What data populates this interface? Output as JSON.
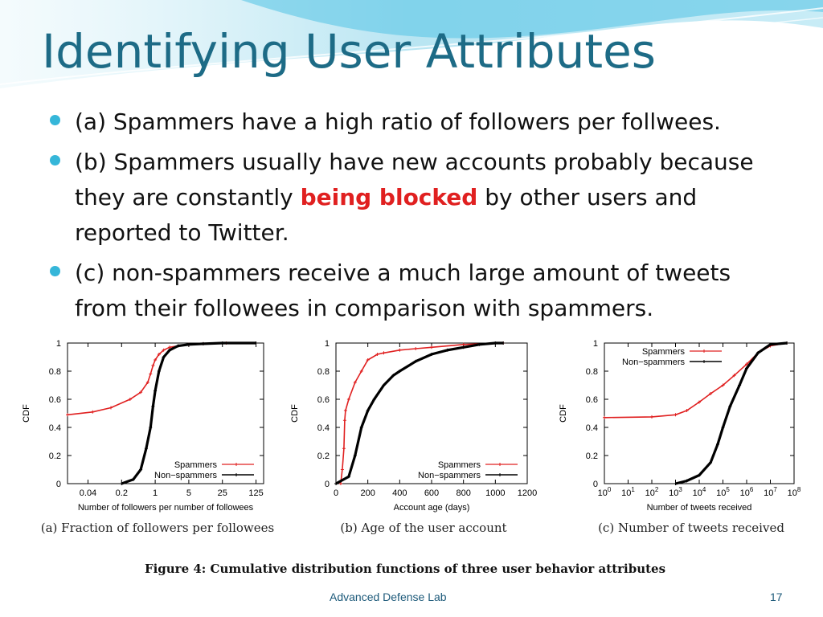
{
  "slide": {
    "title": "Identifying User Attributes",
    "bullets": [
      {
        "pre": "(a) Spammers have a high ratio of followers per follwees.",
        "highlight": "",
        "post": ""
      },
      {
        "pre": "(b) Spammers usually have new accounts probably because they are constantly ",
        "highlight": "being blocked",
        "post": " by other users and reported to Twitter."
      },
      {
        "pre": "(c) non-spammers receive a much large amount of tweets from their followees in comparison with spammers.",
        "highlight": "",
        "post": ""
      }
    ],
    "figure_caption": "Figure 4:  Cumulative distribution functions of three user behavior attributes",
    "footer": "Advanced Defense Lab",
    "page_number": "17",
    "colors": {
      "title": "#1d6b86",
      "bullet": "#35b6d9",
      "highlight": "#e02020",
      "spammers": "#e02020",
      "non_spammers": "#000000"
    }
  },
  "chart_data": [
    {
      "type": "line",
      "subcaption": "(a) Fraction of followers per followees",
      "xlabel": "Number of followers per number of followees",
      "ylabel": "CDF",
      "x_scale": "log",
      "xlim": [
        0.015,
        180
      ],
      "ylim": [
        0,
        1
      ],
      "x_ticks": [
        0.04,
        0.2,
        1,
        5,
        25,
        125
      ],
      "x_tick_labels": [
        "0.04",
        "0.2",
        "1",
        "5",
        "25",
        "125"
      ],
      "y_ticks": [
        0,
        0.2,
        0.4,
        0.6,
        0.8,
        1
      ],
      "y_tick_labels": [
        "0",
        "0.2",
        "0.4",
        "0.6",
        "0.8",
        "1"
      ],
      "legend": "bottom-right",
      "series": [
        {
          "name": "Spammers",
          "x": [
            0.015,
            0.05,
            0.12,
            0.3,
            0.5,
            0.7,
            0.8,
            0.9,
            1.0,
            1.2,
            1.5,
            2,
            3,
            5,
            10,
            30,
            125
          ],
          "y": [
            0.49,
            0.51,
            0.54,
            0.6,
            0.65,
            0.72,
            0.78,
            0.84,
            0.88,
            0.92,
            0.95,
            0.97,
            0.98,
            0.99,
            0.995,
            1,
            1
          ]
        },
        {
          "name": "Non-spammers",
          "x": [
            0.2,
            0.35,
            0.5,
            0.65,
            0.8,
            0.9,
            1.0,
            1.2,
            1.5,
            2,
            3,
            5,
            10,
            25,
            125
          ],
          "y": [
            0,
            0.03,
            0.1,
            0.25,
            0.4,
            0.55,
            0.66,
            0.8,
            0.9,
            0.95,
            0.98,
            0.99,
            0.995,
            1,
            1
          ]
        }
      ]
    },
    {
      "type": "line",
      "subcaption": "(b) Age of the user account",
      "xlabel": "Account age (days)",
      "ylabel": "CDF",
      "x_scale": "linear",
      "xlim": [
        0,
        1200
      ],
      "ylim": [
        0,
        1
      ],
      "x_ticks": [
        0,
        200,
        400,
        600,
        800,
        1000,
        1200
      ],
      "x_tick_labels": [
        "0",
        "200",
        "400",
        "600",
        "800",
        "1000",
        "1200"
      ],
      "y_ticks": [
        0,
        0.2,
        0.4,
        0.6,
        0.8,
        1
      ],
      "y_tick_labels": [
        "0",
        "0.2",
        "0.4",
        "0.6",
        "0.8",
        "1"
      ],
      "legend": "bottom-right",
      "series": [
        {
          "name": "Spammers",
          "x": [
            30,
            40,
            50,
            55,
            60,
            80,
            120,
            160,
            200,
            260,
            300,
            400,
            500,
            600,
            800,
            1050
          ],
          "y": [
            0,
            0.1,
            0.25,
            0.45,
            0.52,
            0.6,
            0.72,
            0.8,
            0.88,
            0.92,
            0.93,
            0.95,
            0.96,
            0.97,
            0.99,
            1
          ]
        },
        {
          "name": "Non-spammers",
          "x": [
            0,
            80,
            120,
            160,
            200,
            240,
            300,
            360,
            400,
            500,
            600,
            700,
            800,
            900,
            1000,
            1050
          ],
          "y": [
            0,
            0.05,
            0.2,
            0.4,
            0.52,
            0.6,
            0.7,
            0.77,
            0.8,
            0.87,
            0.92,
            0.95,
            0.97,
            0.99,
            1,
            1
          ]
        }
      ]
    },
    {
      "type": "line",
      "subcaption": "(c) Number of tweets received",
      "xlabel": "Number of tweets received",
      "ylabel": "CDF",
      "x_scale": "log",
      "xlim": [
        1,
        100000000
      ],
      "ylim": [
        0,
        1
      ],
      "x_ticks": [
        1,
        10,
        100,
        1000,
        10000,
        100000,
        1000000,
        10000000,
        100000000
      ],
      "x_tick_labels": [
        "10^0",
        "10^1",
        "10^2",
        "10^3",
        "10^4",
        "10^5",
        "10^6",
        "10^7",
        "10^8"
      ],
      "y_ticks": [
        0,
        0.2,
        0.4,
        0.6,
        0.8,
        1
      ],
      "y_tick_labels": [
        "0",
        "0.2",
        "0.4",
        "0.6",
        "0.8",
        "1"
      ],
      "legend": "top-left",
      "series": [
        {
          "name": "Spammers",
          "x": [
            1,
            100,
            1000,
            3000,
            10000,
            30000,
            100000,
            300000,
            1000000,
            3000000,
            10000000,
            50000000
          ],
          "y": [
            0.47,
            0.475,
            0.49,
            0.52,
            0.58,
            0.64,
            0.7,
            0.77,
            0.85,
            0.93,
            0.98,
            1
          ]
        },
        {
          "name": "Non-spammers",
          "x": [
            1000,
            3000,
            10000,
            30000,
            60000,
            100000,
            200000,
            500000,
            1000000,
            3000000,
            10000000,
            50000000
          ],
          "y": [
            0,
            0.02,
            0.06,
            0.15,
            0.28,
            0.4,
            0.55,
            0.7,
            0.82,
            0.93,
            0.99,
            1
          ]
        }
      ]
    }
  ]
}
